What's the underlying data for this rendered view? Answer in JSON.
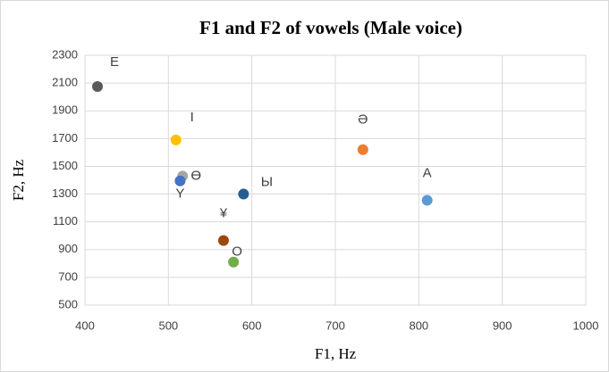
{
  "chart_data": {
    "type": "scatter",
    "title": "F1 and F2 of vowels (Male voice)",
    "x_label": "F1, Hz",
    "y_label": "F2, Hz",
    "xlim": [
      400,
      1000
    ],
    "xticks": [
      400,
      500,
      600,
      700,
      800,
      900,
      1000
    ],
    "ylim": [
      500,
      2300
    ],
    "yticks": [
      500,
      700,
      900,
      1100,
      1300,
      1500,
      1700,
      1900,
      2100,
      2300
    ],
    "grid": true,
    "series": [
      {
        "name": "E",
        "color": "#595959",
        "x": [
          415
        ],
        "values": [
          2075
        ]
      },
      {
        "name": "I",
        "color": "#ffc000",
        "x": [
          509
        ],
        "values": [
          1690
        ]
      },
      {
        "name": "Ө",
        "color": "#a5a5a5",
        "x": [
          517
        ],
        "values": [
          1430
        ]
      },
      {
        "name": "Y",
        "color": "#4472c4",
        "x": [
          514
        ],
        "values": [
          1395
        ]
      },
      {
        "name": "Ы",
        "color": "#255e91",
        "x": [
          590
        ],
        "values": [
          1300
        ]
      },
      {
        "name": "¥",
        "color": "#9e480e",
        "x": [
          566
        ],
        "values": [
          965
        ]
      },
      {
        "name": "O",
        "color": "#70ad47",
        "x": [
          578
        ],
        "values": [
          810
        ]
      },
      {
        "name": "Ə",
        "color": "#ed7d31",
        "x": [
          733
        ],
        "values": [
          1620
        ]
      },
      {
        "name": "A",
        "color": "#5b9bd5",
        "x": [
          810
        ],
        "values": [
          1255
        ]
      }
    ]
  }
}
